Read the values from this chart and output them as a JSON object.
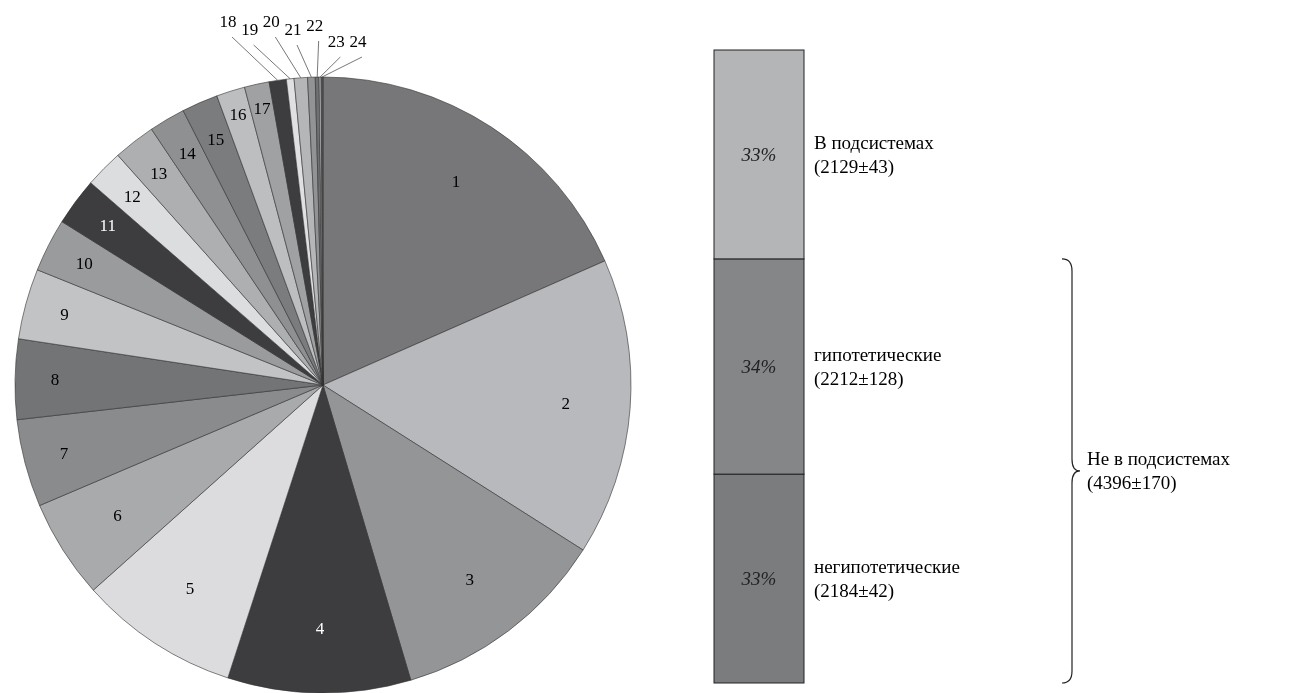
{
  "chart_data": [
    {
      "type": "pie",
      "categories": [
        "1",
        "2",
        "3",
        "4",
        "5",
        "6",
        "7",
        "8",
        "9",
        "10",
        "11",
        "12",
        "13",
        "14",
        "15",
        "16",
        "17",
        "18",
        "19",
        "20",
        "21",
        "22",
        "23",
        "24"
      ],
      "values": [
        18.4,
        15.6,
        11.4,
        9.6,
        8.4,
        5.2,
        4.6,
        4.2,
        3.7,
        2.8,
        2.5,
        2.0,
        2.2,
        1.9,
        1.9,
        1.5,
        1.3,
        0.9,
        0.4,
        0.7,
        0.4,
        0.2,
        0.1,
        0.1
      ],
      "colors": [
        "#77777a",
        "#b8b9bc",
        "#949597",
        "#3d3c3f",
        "#dcdcde",
        "#a9aaac",
        "#8a8b8d",
        "#737476",
        "#c2c3c5",
        "#9a9b9d",
        "#3d3c3f",
        "#dcdddf",
        "#aeafb1",
        "#8f9092",
        "#7b7c7e",
        "#bdbec0",
        "#a0a1a3",
        "#3d3c3f",
        "#e0e0e2",
        "#b5b6b8",
        "#929395",
        "#6f7072",
        "#c5c6c8",
        "#555557"
      ]
    },
    {
      "type": "bar",
      "stacked": true,
      "categories": [
        null
      ],
      "series": [
        {
          "name": "негипотетические (2184±42)",
          "color": "#7b7c7e",
          "values": [
            33
          ],
          "value_labels": [
            "33%"
          ]
        },
        {
          "name": "гипотетические (2212±128)",
          "color": "#858688",
          "values": [
            34
          ],
          "value_labels": [
            "34%"
          ]
        },
        {
          "name": "В подсистемах (2129±43)",
          "color": "#b4b5b7",
          "values": [
            33
          ],
          "value_labels": [
            "33%"
          ]
        }
      ],
      "annotations": [
        "Не в подсистемах (4396±170)"
      ]
    }
  ]
}
